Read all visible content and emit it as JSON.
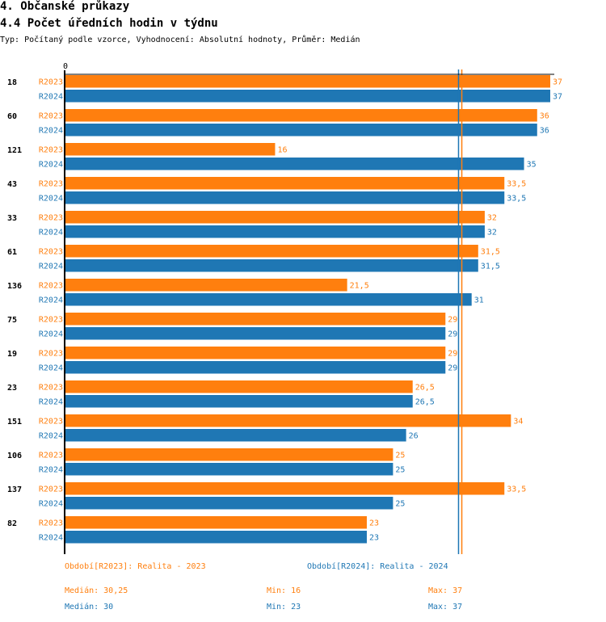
{
  "header": {
    "section": "4. Občanské průkazy",
    "title": "4.4 Počet úředních hodin v týdnu",
    "subtitle": "Typ: Počítaný podle vzorce, Vyhodnocení: Absolutní hodnoty, Průměr: Medián"
  },
  "chart_data": {
    "type": "bar",
    "orientation": "horizontal",
    "axis_tick_label": "0",
    "xlim": [
      0,
      37
    ],
    "categories": [
      "18",
      "60",
      "121",
      "43",
      "33",
      "61",
      "136",
      "75",
      "19",
      "23",
      "151",
      "106",
      "137",
      "82"
    ],
    "series": [
      {
        "name": "R2023",
        "color": "#ff7f0e",
        "values": [
          37,
          36,
          16,
          33.5,
          32,
          31.5,
          21.5,
          29,
          29,
          26.5,
          34,
          25,
          33.5,
          23
        ]
      },
      {
        "name": "R2024",
        "color": "#1f77b4",
        "values": [
          37,
          36,
          35,
          33.5,
          32,
          31.5,
          31,
          29,
          29,
          26.5,
          26,
          25,
          25,
          23
        ]
      }
    ],
    "median_lines": [
      {
        "series": "R2024",
        "value": 30
      },
      {
        "series": "R2023",
        "value": 30.25
      }
    ]
  },
  "legend": {
    "r2023": "Období[R2023]: Realita - 2023",
    "r2024": "Období[R2024]: Realita - 2024"
  },
  "stats": {
    "r2023": {
      "median": "Medián: 30,25",
      "min": "Min: 16",
      "max": "Max: 37"
    },
    "r2024": {
      "median": "Medián: 30",
      "min": "Min: 23",
      "max": "Max: 37"
    }
  }
}
